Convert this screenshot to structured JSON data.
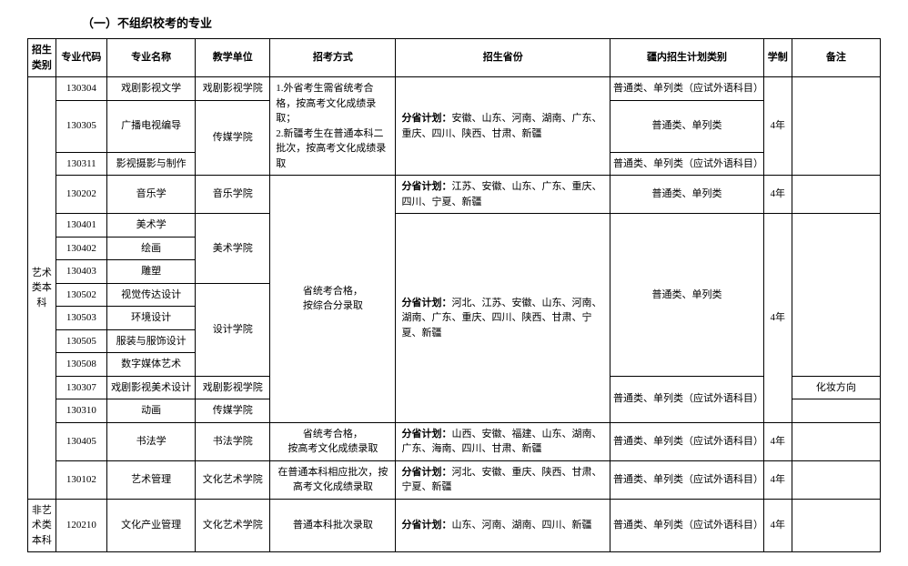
{
  "title": "（一）不组织校考的专业",
  "headers": {
    "category": "招生类别",
    "code": "专业代码",
    "name": "专业名称",
    "unit": "教学单位",
    "method": "招考方式",
    "province": "招生省份",
    "plan": "疆内招生计划类别",
    "term": "学制",
    "note": "备注"
  },
  "category_art": "艺术类本科",
  "category_nonart": "非艺术类本科",
  "rows": [
    {
      "code": "130304",
      "name": "戏剧影视文学",
      "unit": "戏剧影视学院",
      "plan": "普通类、单列类（应试外语科目）"
    },
    {
      "code": "130305",
      "name": "广播电视编导",
      "plan": "普通类、单列类"
    },
    {
      "code": "130311",
      "name": "影视摄影与制作",
      "plan": "普通类、单列类（应试外语科目）"
    },
    {
      "code": "130202",
      "name": "音乐学",
      "unit": "音乐学院",
      "plan": "普通类、单列类"
    },
    {
      "code": "130401",
      "name": "美术学"
    },
    {
      "code": "130402",
      "name": "绘画"
    },
    {
      "code": "130403",
      "name": "雕塑"
    },
    {
      "code": "130502",
      "name": "视觉传达设计"
    },
    {
      "code": "130503",
      "name": "环境设计"
    },
    {
      "code": "130505",
      "name": "服装与服饰设计"
    },
    {
      "code": "130508",
      "name": "数字媒体艺术"
    },
    {
      "code": "130307",
      "name": "戏剧影视美术设计",
      "unit": "戏剧影视学院"
    },
    {
      "code": "130310",
      "name": "动画",
      "unit": "传媒学院"
    },
    {
      "code": "130405",
      "name": "书法学",
      "unit": "书法学院",
      "plan": "普通类、单列类（应试外语科目）"
    },
    {
      "code": "130102",
      "name": "艺术管理",
      "unit": "文化艺术学院",
      "plan": "普通类、单列类（应试外语科目）"
    },
    {
      "code": "120210",
      "name": "文化产业管理",
      "unit": "文化艺术学院",
      "plan": "普通类、单列类（应试外语科目）"
    }
  ],
  "unit_media": "传媒学院",
  "unit_art": "美术学院",
  "unit_design": "设计学院",
  "method1": "1.外省考生需省统考合格，按高考文化成绩录取；\n2.新疆考生在普通本科二批次，按高考文化成绩录取",
  "method2": "省统考合格，\n按综合分录取",
  "method3": "省统考合格，\n按高考文化成绩录取",
  "method4": "在普通本科相应批次，按高考文化成绩录取",
  "method5": "普通本科批次录取",
  "prov_label": "分省计划：",
  "prov1": "安徽、山东、河南、湖南、广东、重庆、四川、陕西、甘肃、新疆",
  "prov2": "江苏、安徽、山东、广东、重庆、四川、宁夏、新疆",
  "prov3": "河北、江苏、安徽、山东、河南、湖南、广东、重庆、四川、陕西、甘肃、宁夏、新疆",
  "prov4": "山西、安徽、福建、山东、湖南、广东、海南、四川、甘肃、新疆",
  "prov5": "河北、安徽、重庆、陕西、甘肃、宁夏、新疆",
  "prov6": "山东、河南、湖南、四川、新疆",
  "plan_common": "普通类、单列类",
  "plan_foreign": "普通类、单列类（应试外语科目）",
  "term4": "4年",
  "note_makeup": "化妆方向"
}
